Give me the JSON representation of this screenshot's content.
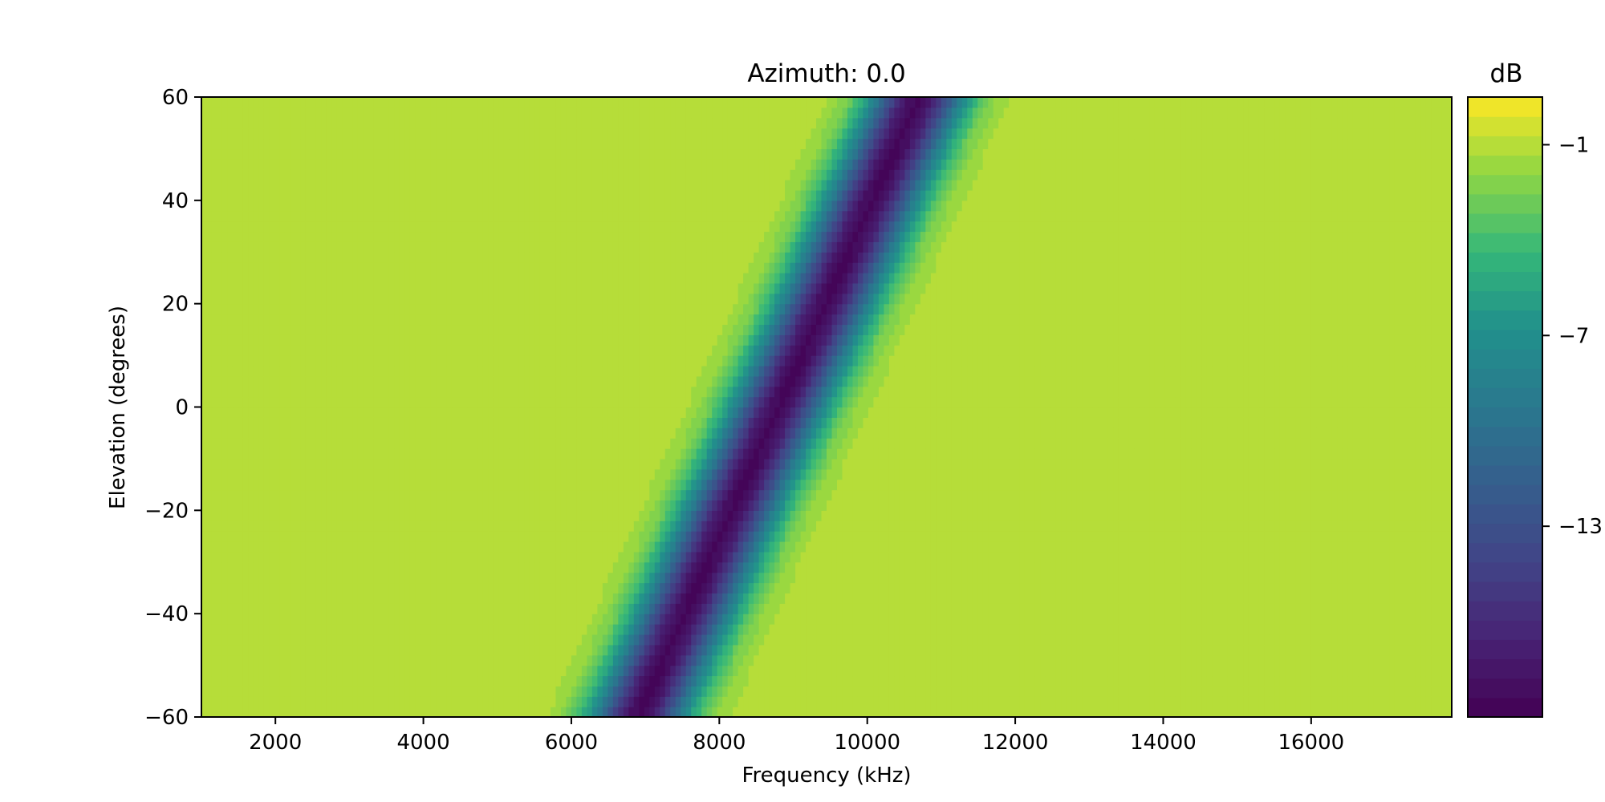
{
  "chart_data": {
    "type": "heatmap",
    "title": "Azimuth: 0.0",
    "xlabel": "Frequency (kHz)",
    "ylabel": "Elevation (degrees)",
    "xlim": [
      1000,
      17900
    ],
    "ylim": [
      -60,
      60
    ],
    "x_ticks": [
      2000,
      4000,
      6000,
      8000,
      10000,
      12000,
      14000,
      16000
    ],
    "x_tick_labels": [
      "2000",
      "4000",
      "6000",
      "8000",
      "10000",
      "12000",
      "14000",
      "16000"
    ],
    "y_ticks": [
      -60,
      -40,
      -20,
      0,
      20,
      40,
      60
    ],
    "y_tick_labels": [
      "−60",
      "−40",
      "−20",
      "0",
      "20",
      "40",
      "60"
    ],
    "z_description": "level in dB; a deep notch band moving from ~6900 kHz at -60° to ~10700 kHz at 60°, roughly -1 dB elsewhere",
    "notch_center_line": [
      {
        "elevation": -60,
        "frequency": 6900
      },
      {
        "elevation": 60,
        "frequency": 10700
      }
    ],
    "notch_min_db": -18.5,
    "background_db": -1.0,
    "colorbar": {
      "label": "dB",
      "range": [
        -19,
        0.5
      ],
      "ticks": [
        -1,
        -7,
        -13
      ],
      "tick_labels": [
        "−1",
        "−7",
        "−13"
      ],
      "colormap": "viridis",
      "levels": 32
    },
    "grid": false
  }
}
